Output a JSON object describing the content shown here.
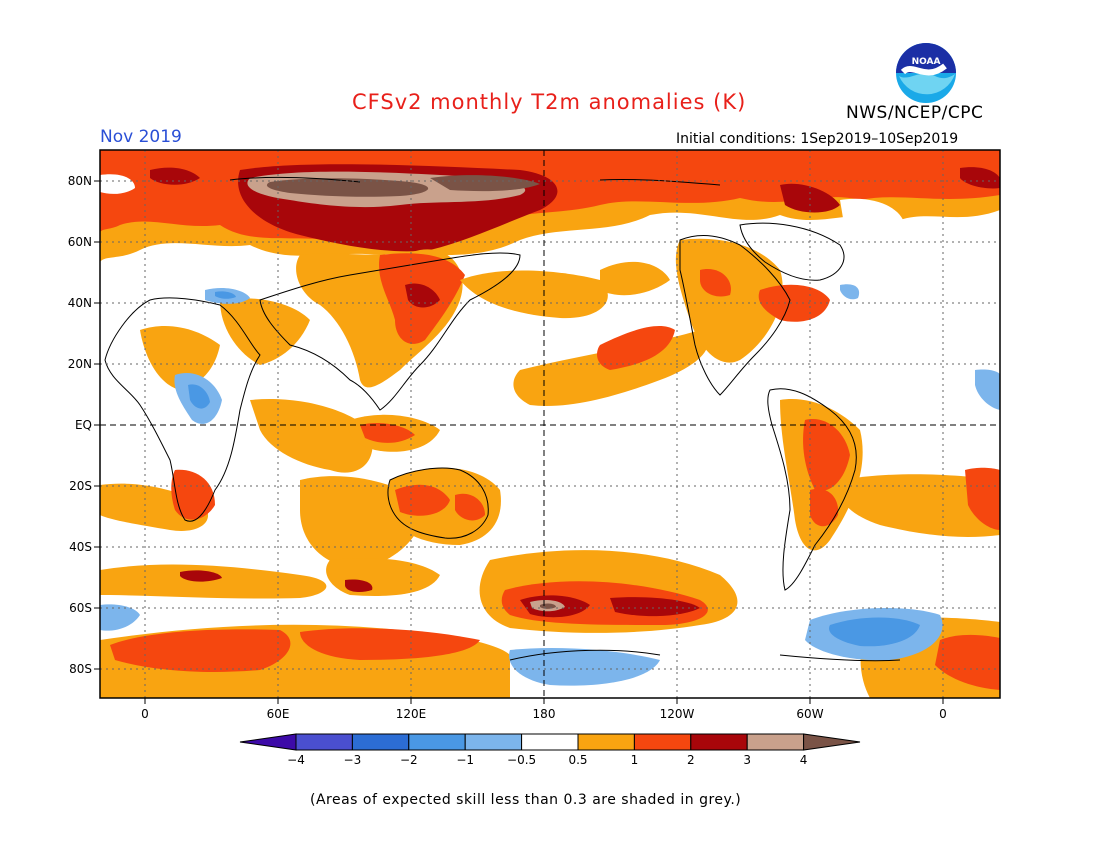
{
  "header": {
    "title": "CFSv2 monthly T2m anomalies (K)",
    "month": "Nov 2019",
    "initial_conditions": "Initial conditions: 1Sep2019–10Sep2019",
    "org": "NWS/NCEP/CPC",
    "logo_text": "NOAA"
  },
  "axes": {
    "lat_labels": [
      "80N",
      "60N",
      "40N",
      "20N",
      "EQ",
      "20S",
      "40S",
      "60S",
      "80S"
    ],
    "lon_labels": [
      "0",
      "60E",
      "120E",
      "180",
      "120W",
      "60W",
      "0"
    ]
  },
  "legend": {
    "tick_labels": [
      "−4",
      "−3",
      "−2",
      "−1",
      "−0.5",
      "0.5",
      "1",
      "2",
      "3",
      "4"
    ],
    "colors": [
      "#3d0aa8",
      "#4a4fcf",
      "#2c6dd4",
      "#4a98e4",
      "#7cb5ec",
      "#ffffff",
      "#f9a411",
      "#f5470f",
      "#a8060a",
      "#c9a18c",
      "#7a5346"
    ]
  },
  "footnote": "(Areas of expected skill less than 0.3 are shaded in grey.)"
}
